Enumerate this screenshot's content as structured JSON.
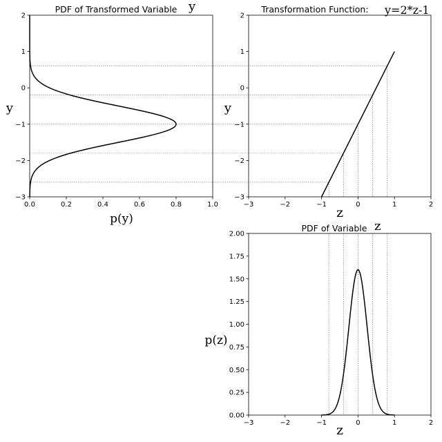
{
  "chart_data": [
    {
      "id": "transformed",
      "type": "line",
      "title": "PDF of Transformed Variable",
      "corner_label": "y",
      "xlabel": "p(y)",
      "ylabel": "y",
      "xlim": [
        0.0,
        1.0
      ],
      "ylim": [
        -3,
        2
      ],
      "xticks": [
        "0.0",
        "0.2",
        "0.4",
        "0.6",
        "0.8",
        "1.0"
      ],
      "yticks": [
        "−3",
        "−2",
        "−1",
        "0",
        "1",
        "2"
      ],
      "curve": {
        "kind": "normal_pdf_vertical",
        "mean": -1,
        "std": 0.5,
        "peak": 0.8
      },
      "guide_levels": [
        0.6,
        -0.2,
        -1.0,
        -1.8,
        -2.6
      ]
    },
    {
      "id": "transformation",
      "type": "line",
      "title": "Transformation Function:",
      "annotation": "y=2*z-1",
      "xlabel": "z",
      "ylabel": "y",
      "xlim": [
        -3,
        2
      ],
      "ylim": [
        -3,
        2
      ],
      "xticks": [
        "−3",
        "−2",
        "−1",
        "0",
        "1",
        "2"
      ],
      "yticks": [
        "−3",
        "−2",
        "−1",
        "0",
        "1",
        "2"
      ],
      "line": {
        "x": [
          -1,
          1
        ],
        "y": [
          -3,
          1
        ]
      },
      "guide_z": [
        0.8,
        0.4,
        0.0,
        -0.4,
        -0.8
      ]
    },
    {
      "id": "variable",
      "type": "line",
      "title": "PDF of Variable",
      "corner_label": "z",
      "xlabel": "z",
      "ylabel": "p(z)",
      "xlim": [
        -3,
        2
      ],
      "ylim": [
        0,
        2
      ],
      "xticks": [
        "−3",
        "−2",
        "−1",
        "0",
        "1",
        "2"
      ],
      "yticks": [
        "0.00",
        "0.25",
        "0.50",
        "0.75",
        "1.00",
        "1.25",
        "1.50",
        "1.75",
        "2.00"
      ],
      "curve": {
        "kind": "normal_pdf",
        "mean": 0,
        "std": 0.25,
        "peak": 1.6
      },
      "guide_z": [
        0.8,
        0.4,
        0.0,
        -0.4,
        -0.8
      ]
    }
  ]
}
